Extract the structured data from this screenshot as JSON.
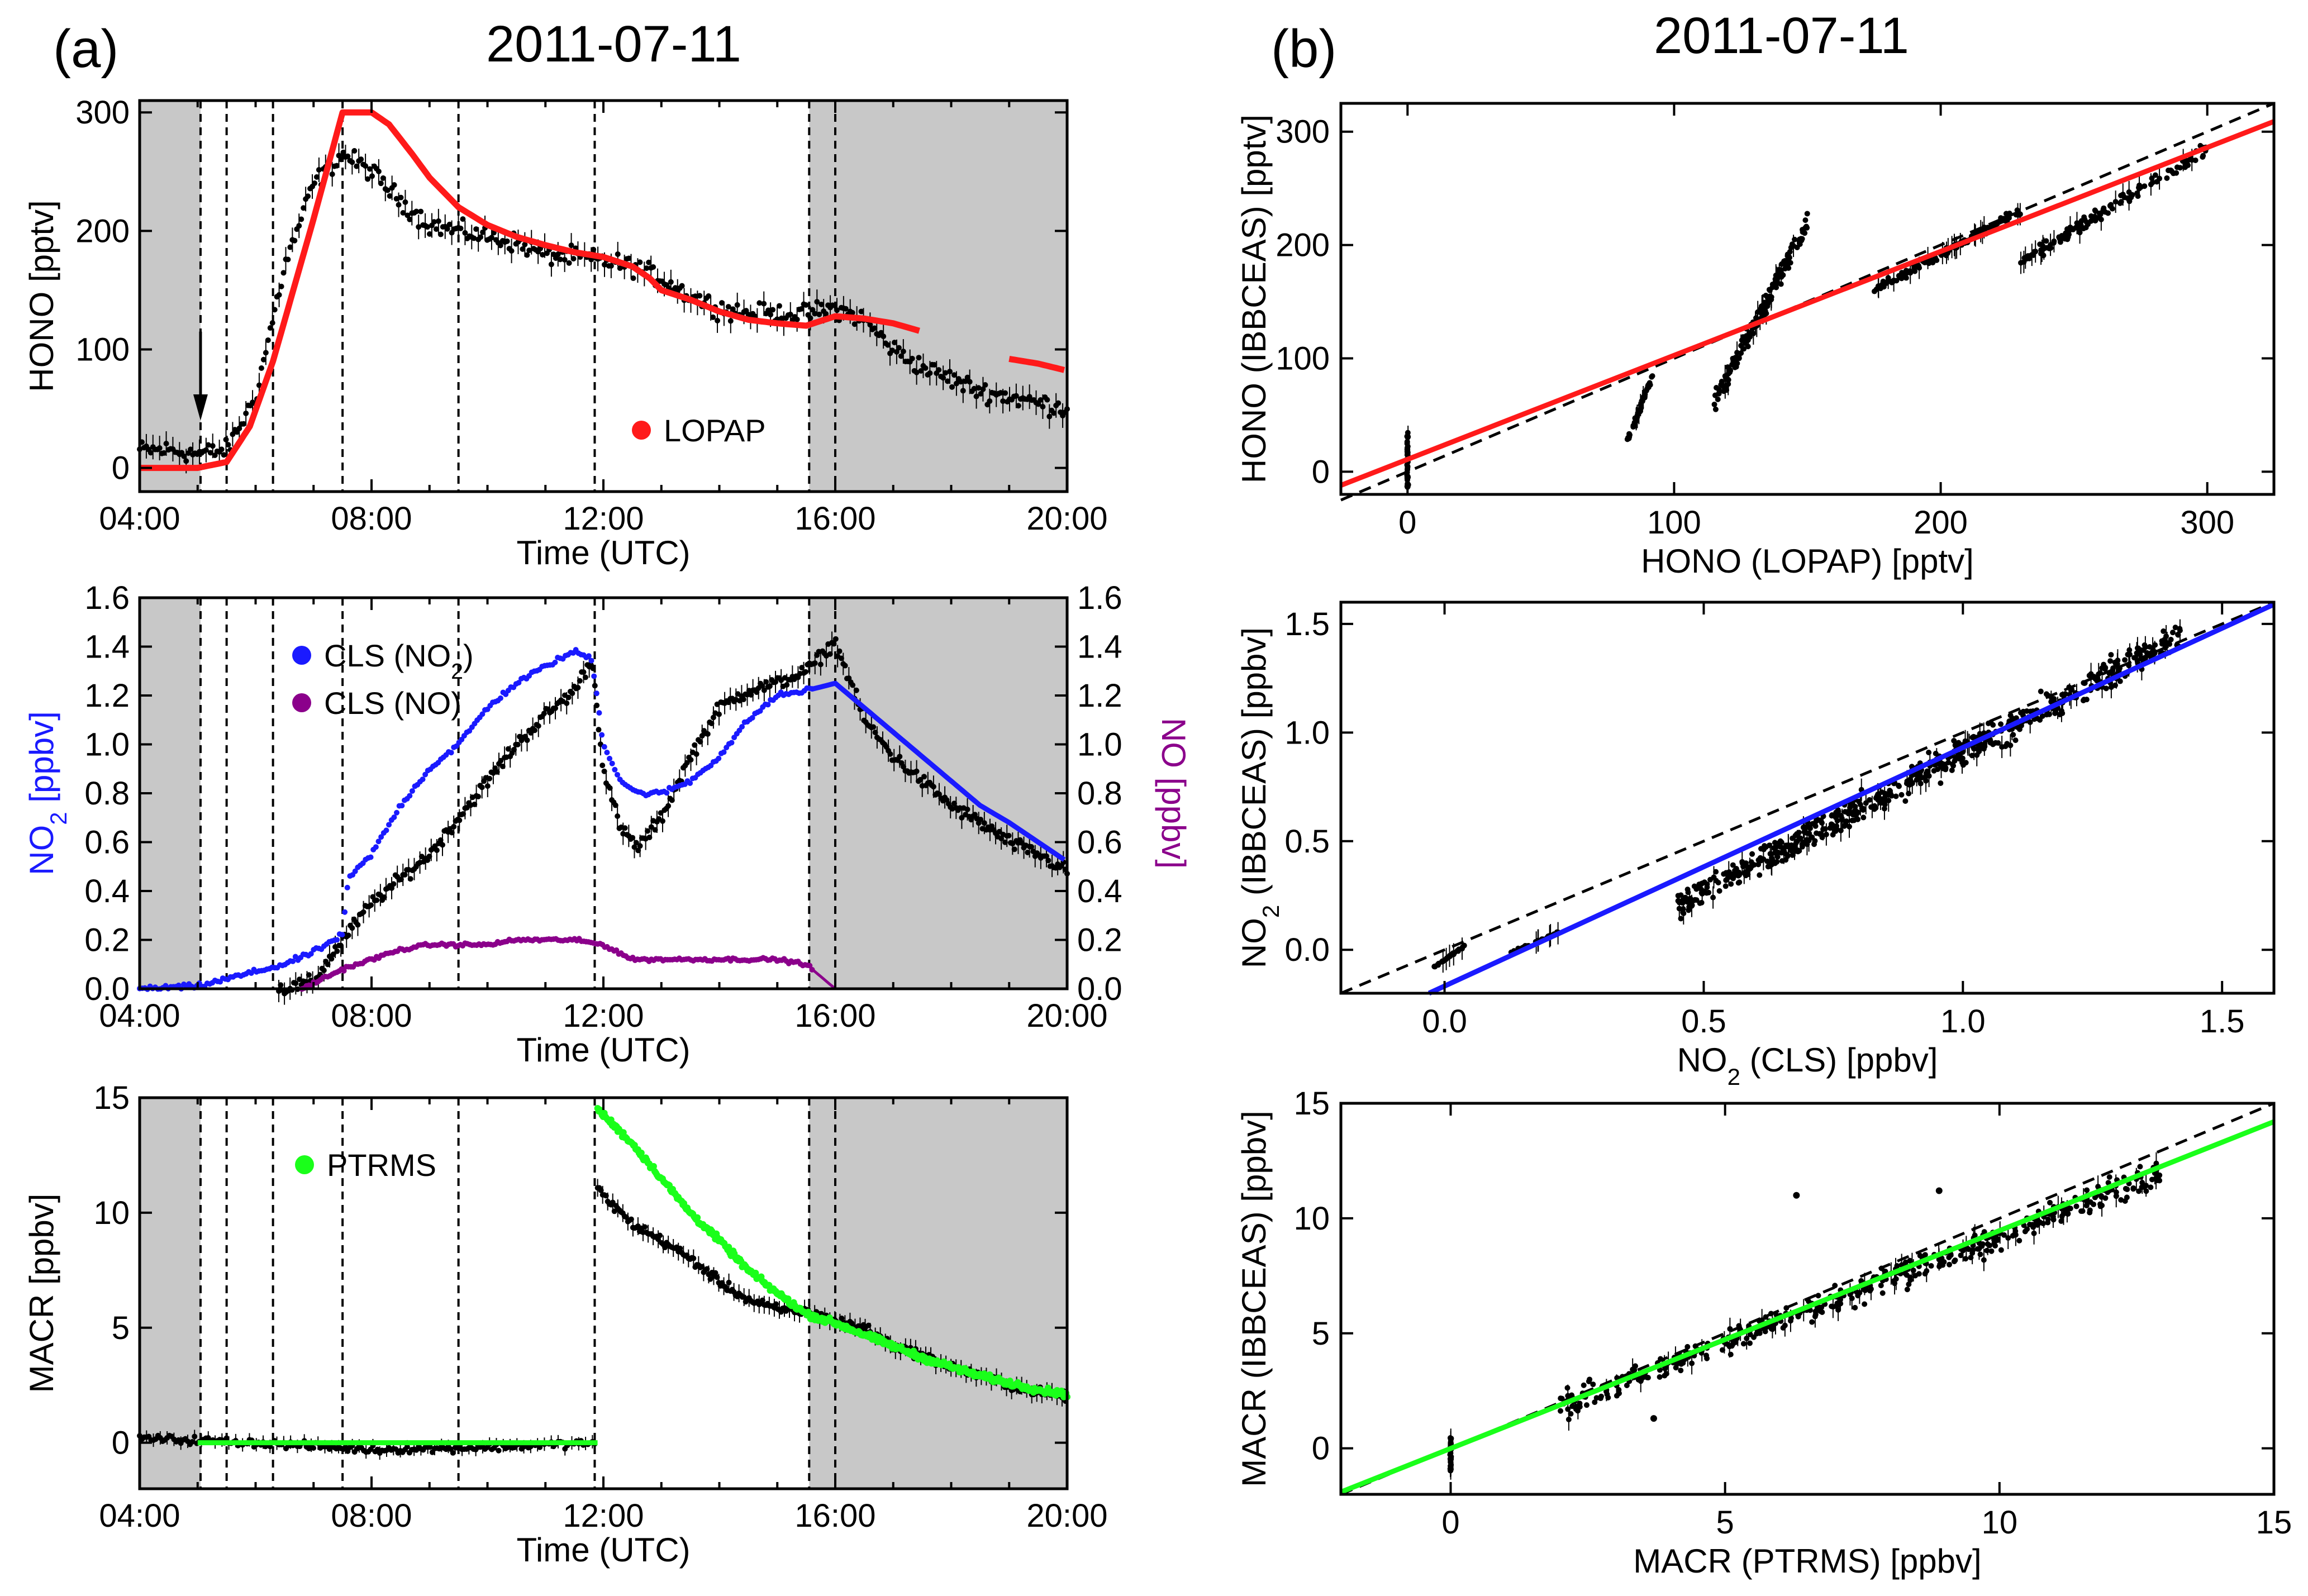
{
  "figure": {
    "panel_a_label": "(a)",
    "panel_b_label": "(b)",
    "date_a": "2011-07-11",
    "date_b": "2011-07-11"
  },
  "colors": {
    "lopap": "#ff1a1a",
    "no2": "#1a1aff",
    "no": "#8b008b",
    "ptrms": "#1aff1a",
    "ibbceas": "#000000",
    "shade": "#c8c8c8"
  },
  "chart_data": [
    {
      "id": "a1",
      "type": "scatter",
      "ylabel": "HONO [pptv]",
      "xlabel": "Time (UTC)",
      "xlim": [
        4,
        20
      ],
      "ylim": [
        -20,
        310
      ],
      "xticks": [
        "04:00",
        "08:00",
        "12:00",
        "16:00",
        "20:00"
      ],
      "yticks": [
        0,
        100,
        200,
        300
      ],
      "shaded_hours": [
        [
          4,
          5.05
        ],
        [
          15.55,
          20
        ]
      ],
      "dashed_hours": [
        5.05,
        5.5,
        6.3,
        7.5,
        9.5,
        11.85,
        15.55,
        16.0
      ],
      "legend": [
        "LOPAP"
      ],
      "lopap_hono": {
        "x": [
          4.0,
          5.0,
          5.5,
          5.9,
          6.3,
          7.0,
          7.5,
          8.0,
          8.3,
          8.7,
          9.0,
          9.5,
          10.0,
          10.5,
          11.0,
          11.5,
          12.0,
          12.5,
          12.8,
          13.0,
          13.5,
          14.0,
          14.5,
          15.0,
          15.5,
          16.0,
          16.5,
          17.0,
          17.5,
          18.0,
          18.5,
          19.0,
          19.5,
          20.0
        ],
        "y": [
          0,
          0,
          5,
          35,
          90,
          210,
          300,
          300,
          290,
          265,
          245,
          220,
          205,
          195,
          188,
          182,
          178,
          170,
          160,
          150,
          142,
          132,
          125,
          122,
          120,
          128,
          126,
          122,
          115,
          null,
          null,
          92,
          88,
          82
        ]
      },
      "ibbceas_hono": {
        "x": [
          4.0,
          4.5,
          5.0,
          5.5,
          6.0,
          6.5,
          7.0,
          7.5,
          8.0,
          8.5,
          9.0,
          9.5,
          10.0,
          10.5,
          11.0,
          11.5,
          12.0,
          12.5,
          13.0,
          13.5,
          14.0,
          14.5,
          15.0,
          15.5,
          16.0,
          16.5,
          17.0,
          17.5,
          18.0,
          18.5,
          19.0,
          19.5,
          20.0
        ],
        "y": [
          15,
          15,
          12,
          15,
          60,
          170,
          240,
          265,
          250,
          225,
          205,
          200,
          195,
          190,
          180,
          178,
          175,
          170,
          160,
          145,
          135,
          130,
          130,
          130,
          135,
          125,
          100,
          85,
          75,
          65,
          60,
          55,
          50
        ]
      },
      "arrow_hour": 5.05
    },
    {
      "id": "a2",
      "type": "scatter",
      "ylabel": "NO2 [ppbv]",
      "ylabel_right": "NO [ppbv]",
      "xlabel": "Time (UTC)",
      "xlim": [
        4,
        20
      ],
      "ylim": [
        0,
        1.6
      ],
      "xticks": [
        "04:00",
        "08:00",
        "12:00",
        "16:00",
        "20:00"
      ],
      "yticks": [
        0.0,
        0.2,
        0.4,
        0.6,
        0.8,
        1.0,
        1.2,
        1.4,
        1.6
      ],
      "shaded_hours": [
        [
          4,
          5.05
        ],
        [
          15.55,
          20
        ]
      ],
      "dashed_hours": [
        5.05,
        5.5,
        6.3,
        7.5,
        9.5,
        11.85,
        15.55,
        16.0
      ],
      "legend": [
        "CLS (NO2)",
        "CLS (NO)"
      ],
      "cls_no2": {
        "x": [
          4.0,
          5.0,
          5.5,
          6.0,
          6.5,
          7.0,
          7.5,
          7.6,
          8.0,
          8.5,
          9.0,
          9.5,
          10.0,
          10.5,
          11.0,
          11.5,
          11.8,
          12.0,
          12.3,
          12.6,
          13.0,
          13.5,
          14.0,
          14.5,
          15.0,
          15.5,
          16.0,
          16.5,
          17.0,
          17.5,
          18.0,
          18.5,
          19.0,
          19.5,
          20.0
        ],
        "y": [
          0.0,
          0.01,
          0.04,
          0.07,
          0.1,
          0.15,
          0.22,
          0.45,
          0.55,
          0.75,
          0.9,
          1.0,
          1.15,
          1.25,
          1.32,
          1.38,
          1.35,
          1.0,
          0.85,
          0.8,
          0.8,
          0.85,
          0.95,
          1.1,
          1.2,
          1.22,
          1.25,
          1.15,
          1.05,
          0.95,
          0.85,
          0.75,
          0.68,
          0.6,
          0.52
        ]
      },
      "cls_no": {
        "x": [
          4.0,
          6.8,
          7.5,
          8.0,
          8.5,
          9.0,
          9.5,
          10.0,
          10.5,
          11.0,
          11.5,
          12.0,
          12.5,
          13.0,
          14.0,
          15.0,
          15.5,
          16.0,
          20.0
        ],
        "y": [
          0.0,
          0.0,
          0.08,
          0.12,
          0.16,
          0.18,
          0.18,
          0.18,
          0.2,
          0.2,
          0.2,
          0.18,
          0.12,
          0.12,
          0.12,
          0.12,
          0.1,
          0.0,
          0.0
        ]
      },
      "ibbceas_no2": {
        "x": [
          4.0,
          6.5,
          7.0,
          7.5,
          8.0,
          8.5,
          9.0,
          9.5,
          10.0,
          10.5,
          11.0,
          11.5,
          11.8,
          12.0,
          12.3,
          12.6,
          13.0,
          13.5,
          14.0,
          14.5,
          15.0,
          15.5,
          16.0,
          16.5,
          17.0,
          17.5,
          18.0,
          18.5,
          19.0,
          19.5,
          20.0
        ],
        "y": [
          0.0,
          0.0,
          0.03,
          0.2,
          0.35,
          0.45,
          0.55,
          0.7,
          0.85,
          1.0,
          1.12,
          1.22,
          1.35,
          0.9,
          0.65,
          0.58,
          0.7,
          0.95,
          1.15,
          1.22,
          1.25,
          1.3,
          1.42,
          1.1,
          0.95,
          0.85,
          0.75,
          0.68,
          0.6,
          0.55,
          0.48
        ]
      }
    },
    {
      "id": "a3",
      "type": "scatter",
      "ylabel": "MACR [ppbv]",
      "xlabel": "Time (UTC)",
      "xlim": [
        4,
        20
      ],
      "ylim": [
        -2,
        15
      ],
      "xticks": [
        "04:00",
        "08:00",
        "12:00",
        "16:00",
        "20:00"
      ],
      "yticks": [
        0,
        5,
        10,
        15
      ],
      "shaded_hours": [
        [
          4,
          5.05
        ],
        [
          15.55,
          20
        ]
      ],
      "dashed_hours": [
        5.05,
        5.5,
        6.3,
        7.5,
        9.5,
        11.85,
        15.55,
        16.0
      ],
      "legend": [
        "PTRMS"
      ],
      "ptrms_macr": {
        "x": [
          5.0,
          11.9,
          11.9,
          12.5,
          13.0,
          13.5,
          14.0,
          14.5,
          15.0,
          15.5,
          16.0,
          16.5,
          17.0,
          17.5,
          18.0,
          18.5,
          19.0,
          19.5,
          20.0
        ],
        "y": [
          0.0,
          0.0,
          14.5,
          13.0,
          11.5,
          10.0,
          8.8,
          7.5,
          6.5,
          5.6,
          5.2,
          4.7,
          4.2,
          3.7,
          3.3,
          2.9,
          2.6,
          2.3,
          2.1
        ]
      },
      "ibbceas_macr": {
        "x": [
          4.0,
          6.0,
          8.0,
          10.0,
          11.85,
          11.9,
          12.5,
          13.0,
          13.5,
          14.0,
          14.5,
          15.0,
          15.5,
          16.0,
          16.5,
          17.0,
          17.5,
          18.0,
          18.5,
          19.0,
          19.5,
          20.0
        ],
        "y": [
          0.2,
          0.0,
          -0.3,
          -0.2,
          0.0,
          11.0,
          9.5,
          8.8,
          8.0,
          7.0,
          6.2,
          5.8,
          5.7,
          5.3,
          5.0,
          4.2,
          3.8,
          3.3,
          2.9,
          2.5,
          2.2,
          2.0
        ]
      }
    },
    {
      "id": "b1",
      "type": "scatter",
      "xlabel": "HONO (LOPAP) [pptv]",
      "ylabel": "HONO (IBBCEAS) [pptv]",
      "xlim": [
        -25,
        325
      ],
      "ylim": [
        -20,
        325
      ],
      "xticks": [
        0,
        100,
        200,
        300
      ],
      "yticks": [
        0,
        100,
        200,
        300
      ],
      "one_to_one": [
        [
          -25,
          -25
        ],
        [
          325,
          325
        ]
      ],
      "fit_line": [
        [
          -25,
          -12
        ],
        [
          325,
          309
        ]
      ],
      "clusters": [
        {
          "x": 0,
          "y_min": -15,
          "y_max": 35
        },
        {
          "x_min": 82,
          "x_max": 92,
          "y_min": 25,
          "y_max": 85
        },
        {
          "x_min": 115,
          "x_max": 150,
          "y_min": 60,
          "y_max": 220
        },
        {
          "x_min": 175,
          "x_max": 230,
          "y_min": 160,
          "y_max": 230
        },
        {
          "x_min": 230,
          "x_max": 300,
          "y_min": 185,
          "y_max": 285
        }
      ]
    },
    {
      "id": "b2",
      "type": "scatter",
      "xlabel": "NO2 (CLS) [ppbv]",
      "ylabel": "NO2 (IBBCEAS) [ppbv]",
      "xlim": [
        -0.2,
        1.6
      ],
      "ylim": [
        -0.2,
        1.6
      ],
      "xticks": [
        0.0,
        0.5,
        1.0,
        1.5
      ],
      "yticks": [
        0.0,
        0.5,
        1.0,
        1.5
      ],
      "one_to_one": [
        [
          -0.2,
          -0.2
        ],
        [
          1.6,
          1.6
        ]
      ],
      "fit_line": [
        [
          -0.03,
          -0.2
        ],
        [
          1.6,
          1.59
        ]
      ],
      "clusters": [
        {
          "x_min": -0.02,
          "x_max": 0.04,
          "y_min": -0.08,
          "y_max": 0.02
        },
        {
          "x_min": 0.12,
          "x_max": 0.22,
          "y_min": -0.02,
          "y_max": 0.08
        },
        {
          "x_min": 0.45,
          "x_max": 1.42,
          "y_min": 0.2,
          "y_max": 1.45
        }
      ]
    },
    {
      "id": "b3",
      "type": "scatter",
      "xlabel": "MACR (PTRMS) [ppbv]",
      "ylabel": "MACR (IBBCEAS) [ppbv]",
      "xlim": [
        -2,
        15
      ],
      "ylim": [
        -2,
        15
      ],
      "xticks": [
        0,
        5,
        10,
        15
      ],
      "yticks": [
        0,
        5,
        10,
        15
      ],
      "one_to_one": [
        [
          -2,
          -2
        ],
        [
          15,
          15
        ]
      ],
      "fit_line": [
        [
          -2,
          -1.9
        ],
        [
          15,
          14.2
        ]
      ],
      "clusters": [
        {
          "x": 0,
          "y_min": -1.0,
          "y_max": 0.5
        },
        {
          "x_min": 2.0,
          "x_max": 13.0,
          "y_min": 1.8,
          "y_max": 12.0
        }
      ],
      "outliers": [
        [
          6.3,
          11.0
        ],
        [
          8.9,
          11.2
        ],
        [
          3.7,
          1.3
        ]
      ]
    }
  ]
}
